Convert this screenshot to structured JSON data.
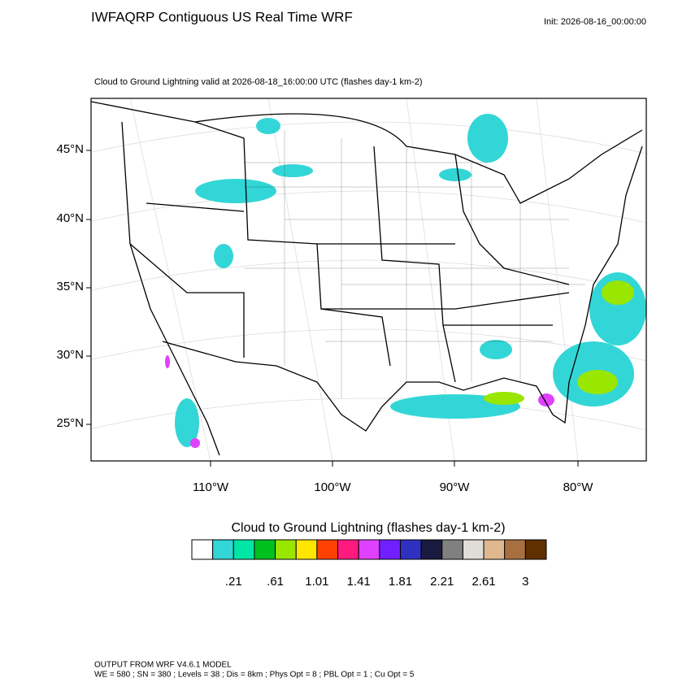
{
  "header": {
    "title": "IWFAQRP Contiguous US Real Time WRF",
    "init": "Init: 2026-08-16_00:00:00"
  },
  "map": {
    "subtitle": "Cloud to Ground Lightning valid at 2026-08-18_16:00:00 UTC   (flashes day-1 km-2)",
    "lat_labels": [
      "45°N",
      "40°N",
      "35°N",
      "30°N",
      "25°N"
    ],
    "lon_labels": [
      "110°W",
      "100°W",
      "90°W",
      "80°W"
    ]
  },
  "colorbar": {
    "title": "Cloud to Ground Lightning  (flashes day-1 km-2)",
    "labels": [
      ".21",
      ".61",
      "1.01",
      "1.41",
      "1.81",
      "2.21",
      "2.61",
      "3"
    ]
  },
  "footer": {
    "line1": "OUTPUT FROM WRF V4.6.1 MODEL",
    "line2": "WE = 580 ; SN = 380 ; Levels = 38 ; Dis = 8km ; Phys Opt = 8 ; PBL Opt = 1 ; Cu Opt = 5"
  }
}
